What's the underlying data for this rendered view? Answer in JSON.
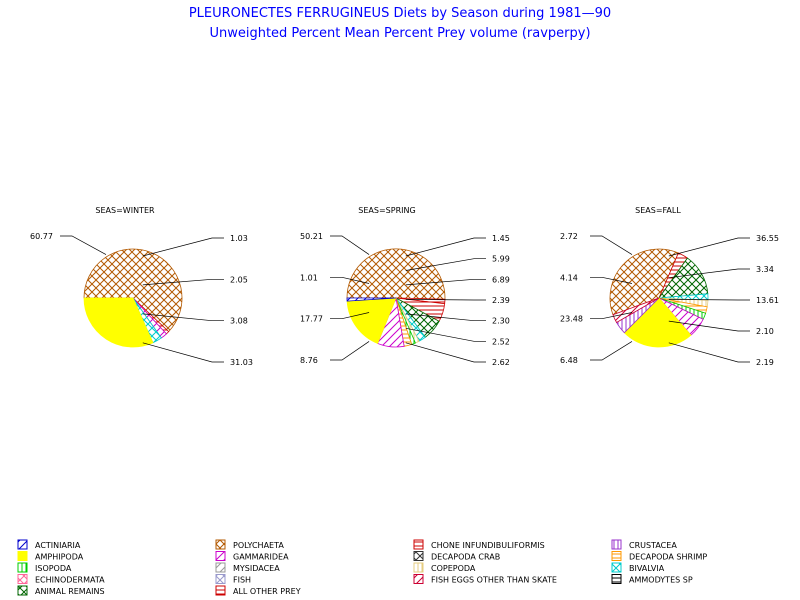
{
  "title": "PLEURONECTES FERRUGINEUS Diets by Season during 1981—90",
  "subtitle": "Unweighted Percent Mean Percent Prey  volume (ravperpy)",
  "legend": [
    {
      "name": "ACTINIARIA",
      "color": "#0000cc",
      "pattern": "diag"
    },
    {
      "name": "AMPHIPODA",
      "color": "#ffff00",
      "pattern": "solid"
    },
    {
      "name": "ISOPODA",
      "color": "#00cc00",
      "pattern": "vert"
    },
    {
      "name": "ECHINODERMATA",
      "color": "#ff6699",
      "pattern": "cross"
    },
    {
      "name": "ANIMAL REMAINS",
      "color": "#006600",
      "pattern": "cross"
    },
    {
      "name": "POLYCHAETA",
      "color": "#b35900",
      "pattern": "cross"
    },
    {
      "name": "GAMMARIDEA",
      "color": "#cc00cc",
      "pattern": "diag"
    },
    {
      "name": "MYSIDACEA",
      "color": "#999999",
      "pattern": "diag"
    },
    {
      "name": "FISH",
      "color": "#9999cc",
      "pattern": "cross"
    },
    {
      "name": "ALL OTHER PREY",
      "color": "#cc0000",
      "pattern": "horiz"
    },
    {
      "name": "CHONE INFUNDIBULIFORMIS",
      "color": "#cc0000",
      "pattern": "horiz"
    },
    {
      "name": "DECAPODA CRAB",
      "color": "#333333",
      "pattern": "cross"
    },
    {
      "name": "COPEPODA",
      "color": "#e6cc80",
      "pattern": "vert"
    },
    {
      "name": "FISH EGGS OTHER THAN SKATE",
      "color": "#cc0033",
      "pattern": "diag"
    },
    {
      "name": "CRUSTACEA",
      "color": "#9933cc",
      "pattern": "vert"
    },
    {
      "name": "DECAPODA SHRIMP",
      "color": "#ff9900",
      "pattern": "horiz"
    },
    {
      "name": "BIVALVIA",
      "color": "#00cccc",
      "pattern": "cross"
    },
    {
      "name": "AMMODYTES SP",
      "color": "#000000",
      "pattern": "horiz"
    }
  ],
  "chart_data": [
    {
      "type": "pie",
      "title": "SEAS=WINTER",
      "slices": [
        {
          "name": "POLYCHAETA",
          "value": 60.77,
          "label": "60.77"
        },
        {
          "name": "ALL OTHER PREY",
          "value": 1.03,
          "label": "1.03"
        },
        {
          "name": "GAMMARIDEA",
          "value": 2.05,
          "label": "2.05"
        },
        {
          "name": "BIVALVIA",
          "value": 3.08,
          "label": "3.08"
        },
        {
          "name": "AMPHIPODA",
          "value": 31.03,
          "label": "31.03"
        }
      ],
      "labels": [
        {
          "text": "60.77",
          "side": "left"
        },
        {
          "text": "1.03",
          "side": "right"
        },
        {
          "text": "2.05",
          "side": "right"
        },
        {
          "text": "3.08",
          "side": "right"
        },
        {
          "text": "31.03",
          "side": "right"
        }
      ]
    },
    {
      "type": "pie",
      "title": "SEAS=SPRING",
      "slices": [
        {
          "name": "POLYCHAETA",
          "value": 50.21,
          "label": "50.21"
        },
        {
          "name": "CHONE INFUNDIBULIFORMIS",
          "value": 1.45,
          "label": "1.45"
        },
        {
          "name": "ALL OTHER PREY",
          "value": 5.99,
          "label": "5.99"
        },
        {
          "name": "ANIMAL REMAINS",
          "value": 6.89,
          "label": "6.89"
        },
        {
          "name": "BIVALVIA",
          "value": 2.39,
          "label": "2.39"
        },
        {
          "name": "COPEPODA",
          "value": 1.3,
          "label": ""
        },
        {
          "name": "ISOPODA",
          "value": 1.3,
          "label": ""
        },
        {
          "name": "DECAPODA SHRIMP",
          "value": 2.52,
          "label": "2.52"
        },
        {
          "name": "GAMMARIDEA",
          "value": 8.76,
          "label": "8.76"
        },
        {
          "name": "AMPHIPODA",
          "value": 17.77,
          "label": "17.77"
        },
        {
          "name": "ACTINIARIA",
          "value": 1.01,
          "label": "1.01"
        }
      ],
      "labels": [
        {
          "text": "50.21",
          "side": "left"
        },
        {
          "text": "1.01",
          "side": "left"
        },
        {
          "text": "17.77",
          "side": "left"
        },
        {
          "text": "8.76",
          "side": "left"
        },
        {
          "text": "1.45",
          "side": "right"
        },
        {
          "text": "5.99",
          "side": "right"
        },
        {
          "text": "6.89",
          "side": "right"
        },
        {
          "text": "2.39",
          "side": "right"
        },
        {
          "text": "2.30",
          "side": "right"
        },
        {
          "text": "2.52",
          "side": "right"
        },
        {
          "text": "2.62",
          "side": "right"
        }
      ]
    },
    {
      "type": "pie",
      "title": "SEAS=FALL",
      "slices": [
        {
          "name": "POLYCHAETA",
          "value": 36.55,
          "label": "36.55"
        },
        {
          "name": "CHONE INFUNDIBULIFORMIS",
          "value": 3.34,
          "label": "3.34"
        },
        {
          "name": "ANIMAL REMAINS",
          "value": 13.61,
          "label": "13.61"
        },
        {
          "name": "BIVALVIA",
          "value": 2.1,
          "label": ""
        },
        {
          "name": "COPEPODA",
          "value": 2.1,
          "label": ""
        },
        {
          "name": "DECAPODA SHRIMP",
          "value": 2.1,
          "label": ""
        },
        {
          "name": "ISOPODA",
          "value": 2.1,
          "label": ""
        },
        {
          "name": "GAMMARIDEA",
          "value": 6.48,
          "label": "6.48"
        },
        {
          "name": "AMPHIPODA",
          "value": 23.48,
          "label": "23.48"
        },
        {
          "name": "CRUSTACEA",
          "value": 4.14,
          "label": "4.14"
        },
        {
          "name": "FISH EGGS OTHER THAN SKATE",
          "value": 2.72,
          "label": "2.72"
        }
      ],
      "labels": [
        {
          "text": "2.72",
          "side": "left"
        },
        {
          "text": "4.14",
          "side": "left"
        },
        {
          "text": "23.48",
          "side": "left"
        },
        {
          "text": "6.48",
          "side": "left"
        },
        {
          "text": "36.55",
          "side": "right"
        },
        {
          "text": "3.34",
          "side": "right"
        },
        {
          "text": "13.61",
          "side": "right"
        },
        {
          "text": "2.10",
          "side": "right"
        },
        {
          "text": "2.19",
          "side": "right"
        }
      ]
    }
  ]
}
